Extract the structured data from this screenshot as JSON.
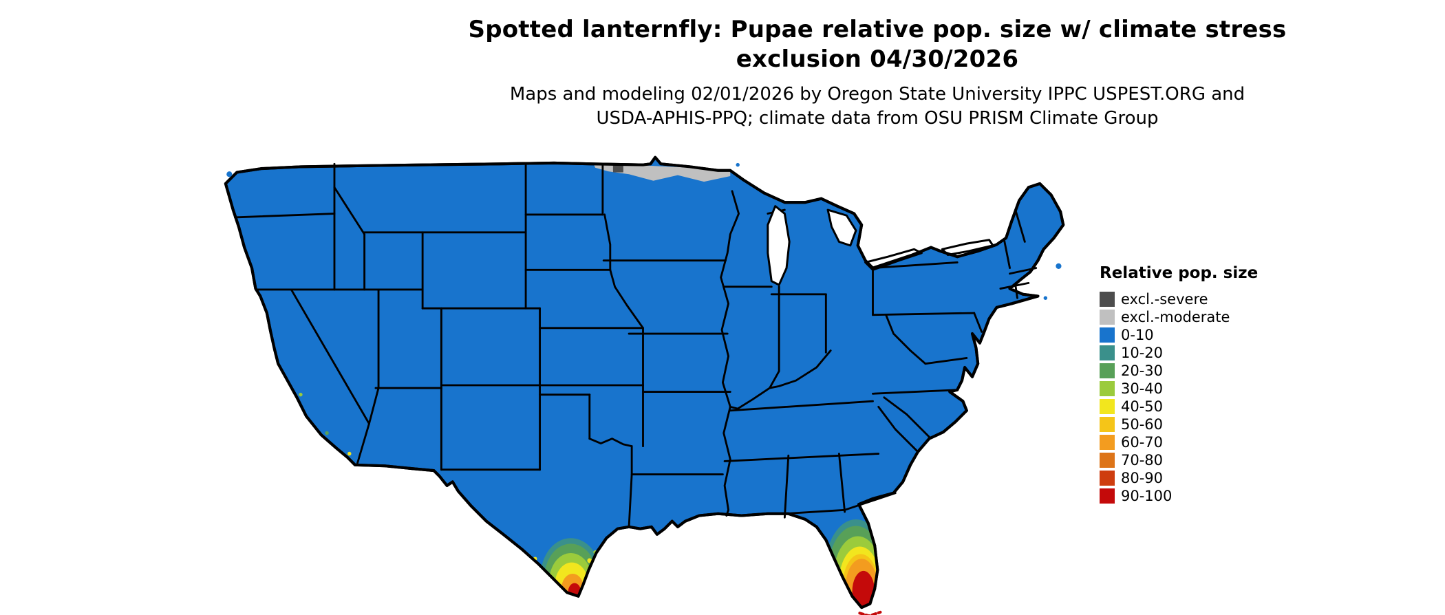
{
  "title": {
    "line1": "Spotted lanternfly: Pupae relative pop. size w/ climate stress",
    "line2": "exclusion 04/30/2026"
  },
  "subtitle": {
    "line1": "Maps and modeling 02/01/2026 by Oregon State University IPPC USPEST.ORG and",
    "line2": "USDA-APHIS-PPQ; climate data from OSU PRISM Climate Group"
  },
  "map": {
    "region": "Contiguous United States",
    "base_color": "#1874CD",
    "border_color": "#000000",
    "background_color": "#FFFFFF",
    "overlays": [
      {
        "area": "northern Minnesota border",
        "category": "excl.-moderate"
      },
      {
        "area": "northern Minnesota border small patch",
        "category": "excl.-severe"
      },
      {
        "area": "southern Texas tip",
        "category": "20-30 through 90-100 gradient"
      },
      {
        "area": "southern Florida and Keys",
        "category": "20-30 through 90-100 gradient"
      }
    ]
  },
  "legend": {
    "title": "Relative pop. size",
    "items": [
      {
        "label": "excl.-severe",
        "color": "#4D4D4D"
      },
      {
        "label": "excl.-moderate",
        "color": "#C0C0C0"
      },
      {
        "label": "0-10",
        "color": "#1874CD"
      },
      {
        "label": "10-20",
        "color": "#3A908B"
      },
      {
        "label": "20-30",
        "color": "#58A058"
      },
      {
        "label": "30-40",
        "color": "#9BCB3C"
      },
      {
        "label": "40-50",
        "color": "#F2E61E"
      },
      {
        "label": "50-60",
        "color": "#F5C518"
      },
      {
        "label": "60-70",
        "color": "#F39C1F"
      },
      {
        "label": "70-80",
        "color": "#DD7418"
      },
      {
        "label": "80-90",
        "color": "#CE3D0F"
      },
      {
        "label": "90-100",
        "color": "#C40A0A"
      }
    ]
  }
}
